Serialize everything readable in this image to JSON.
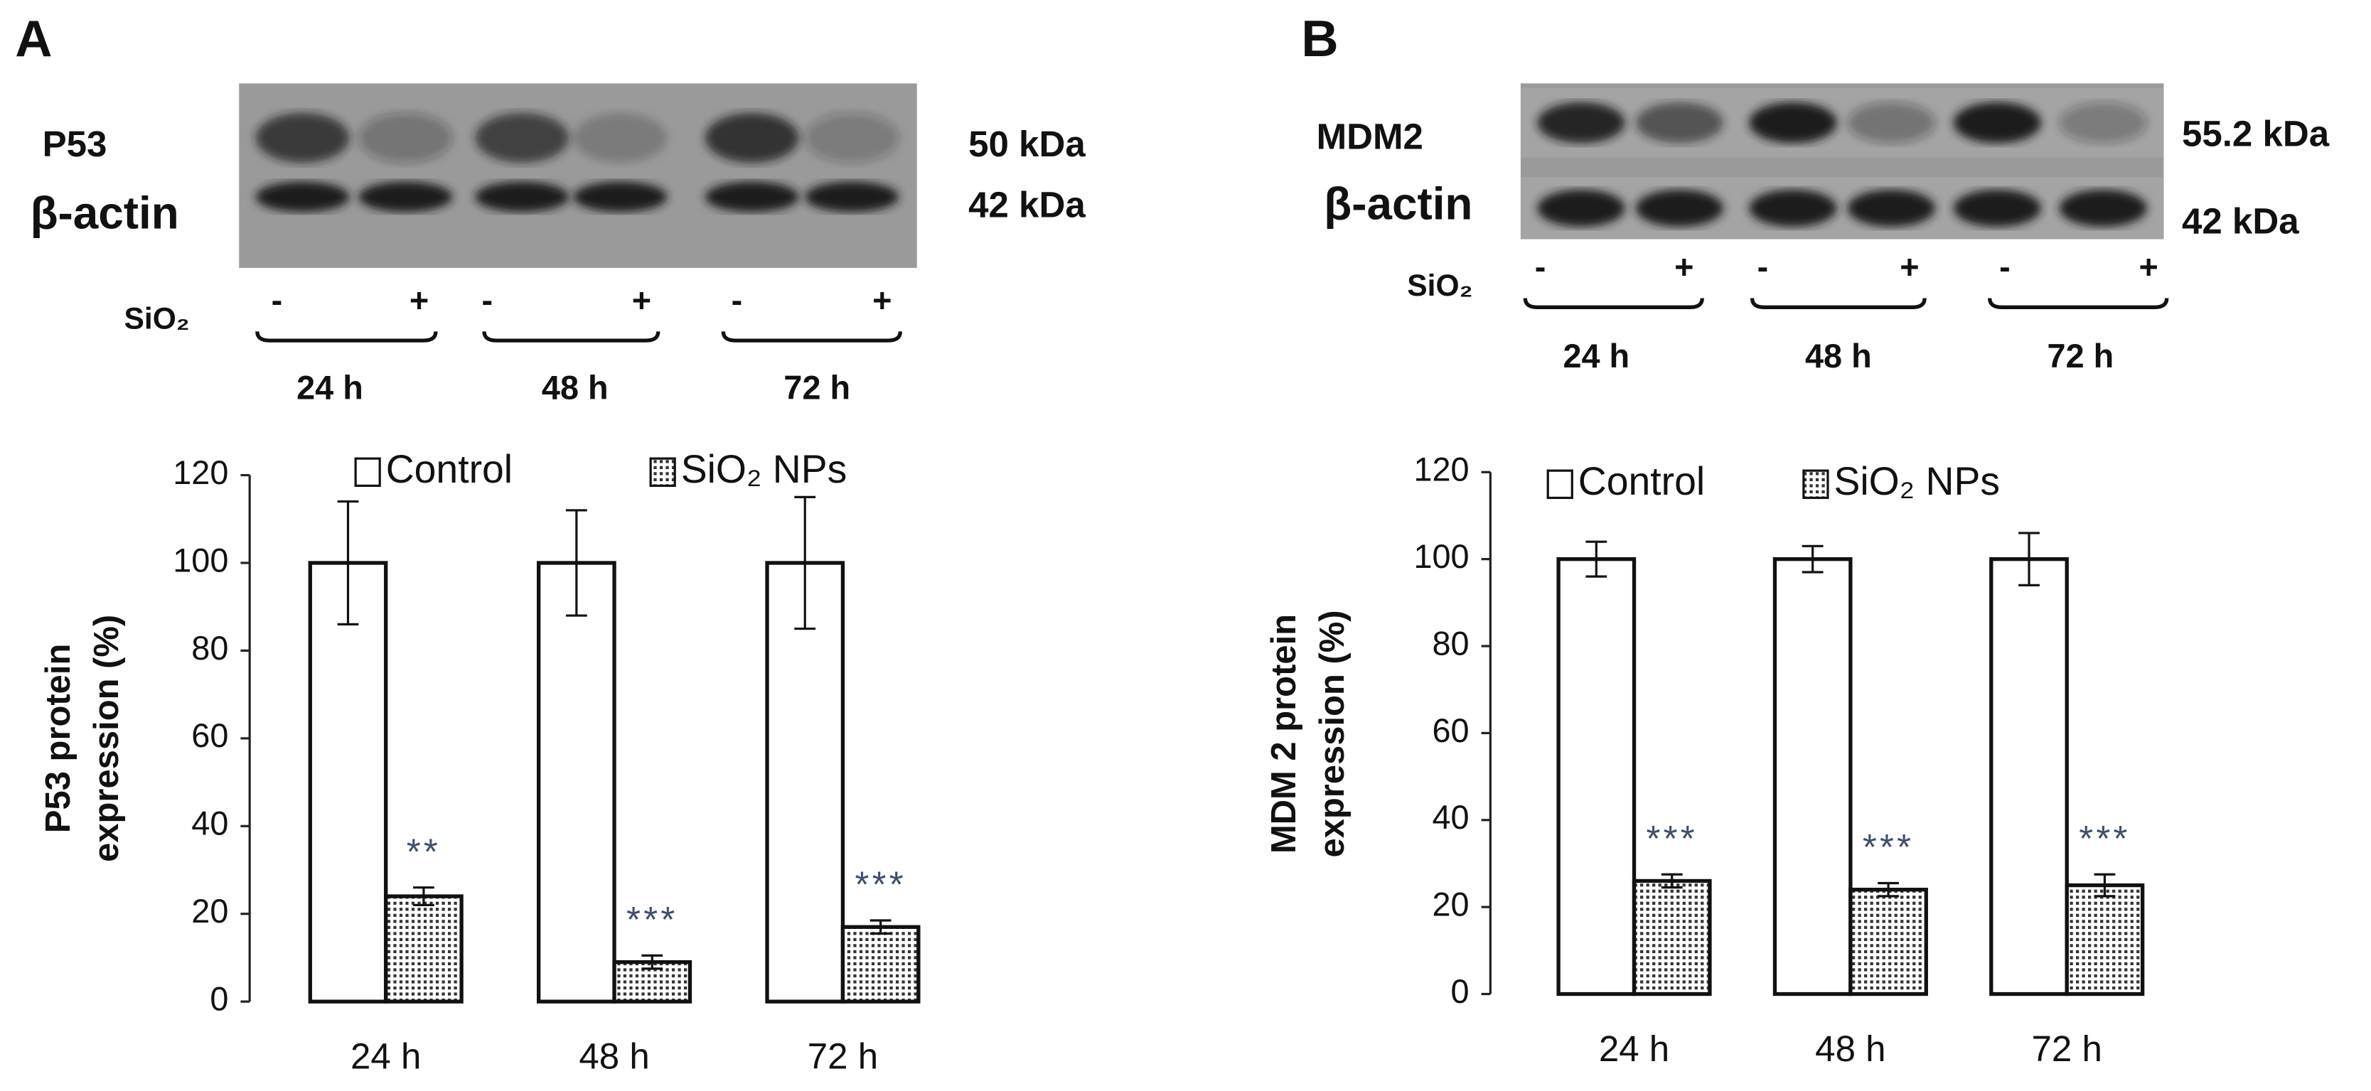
{
  "chart_data": [
    {
      "type": "bar",
      "panel": "A",
      "ylabel": [
        "P53 protein",
        "expression (%)"
      ],
      "categories": [
        "24 h",
        "48 h",
        "72 h"
      ],
      "series": [
        {
          "name": "Control",
          "color": "#ffffff",
          "pattern": "none",
          "values": [
            100,
            100,
            100
          ],
          "errors": [
            14,
            12,
            15
          ]
        },
        {
          "name": "SiO₂ NPs",
          "color": "#ffffff",
          "pattern": "dots",
          "values": [
            24,
            9,
            17
          ],
          "errors": [
            2,
            1.5,
            1.5
          ]
        }
      ],
      "annotations": [
        "**",
        "***",
        "***"
      ],
      "ylim": [
        0,
        120
      ],
      "yticks": [
        0,
        20,
        40,
        60,
        80,
        100,
        120
      ],
      "grid": false
    },
    {
      "type": "bar",
      "panel": "B",
      "ylabel": [
        "MDM 2 protein",
        "expression (%)"
      ],
      "categories": [
        "24 h",
        "48 h",
        "72 h"
      ],
      "series": [
        {
          "name": "Control",
          "color": "#ffffff",
          "pattern": "none",
          "values": [
            100,
            100,
            100
          ],
          "errors": [
            4,
            3,
            6
          ]
        },
        {
          "name": "SiO₂ NPs",
          "color": "#ffffff",
          "pattern": "dots",
          "values": [
            26,
            24,
            25
          ],
          "errors": [
            1.5,
            1.5,
            2.5
          ]
        }
      ],
      "annotations": [
        "***",
        "***",
        "***"
      ],
      "ylim": [
        0,
        120
      ],
      "yticks": [
        0,
        20,
        40,
        60,
        80,
        100,
        120
      ],
      "grid": false
    }
  ],
  "blots": [
    {
      "bands": [
        {
          "label": "P53",
          "size": "50 kDa"
        },
        {
          "label": "β-actin",
          "size": "42 kDa"
        }
      ],
      "treatment": "SiO₂",
      "signs": [
        "-",
        "+",
        "-",
        "+",
        "-",
        "+"
      ],
      "times": [
        "24 h",
        "48 h",
        "72 h"
      ]
    },
    {
      "bands": [
        {
          "label": "MDM2",
          "size": "55.2 kDa"
        },
        {
          "label": "β-actin",
          "size": "42 kDa"
        }
      ],
      "treatment": "SiO₂",
      "signs": [
        "-",
        "+",
        "-",
        "+",
        "-",
        "+"
      ],
      "times": [
        "24 h",
        "48 h",
        "72 h"
      ]
    }
  ]
}
